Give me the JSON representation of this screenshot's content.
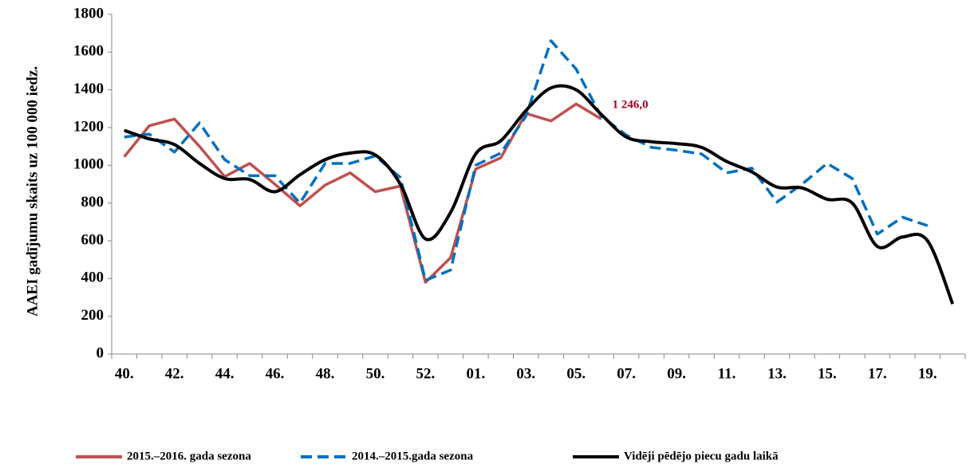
{
  "chart_data": {
    "type": "line",
    "y_label": "AAEI gadījumu skaits uz 100 000 iedz.",
    "categories": [
      "40.",
      null,
      "42.",
      null,
      "44.",
      null,
      "46.",
      null,
      "48.",
      null,
      "50.",
      null,
      "52.",
      null,
      "01.",
      null,
      "03.",
      null,
      "05.",
      null,
      "07.",
      null,
      "09.",
      null,
      "11.",
      null,
      "13.",
      null,
      "15.",
      null,
      "17.",
      null,
      "19.",
      null
    ],
    "ylim": [
      0,
      1800
    ],
    "yticks": [
      0,
      200,
      400,
      600,
      800,
      1000,
      1200,
      1400,
      1600,
      1800
    ],
    "legend": "bottom",
    "series": [
      {
        "name": "2015.–2016. gada sezona",
        "color": "#c0504d",
        "dash": false,
        "smooth": false,
        "values": [
          1045,
          1210,
          1245,
          1100,
          940,
          1010,
          900,
          785,
          895,
          960,
          860,
          890,
          380,
          510,
          980,
          1040,
          1275,
          1235,
          1325,
          1246,
          null,
          null,
          null,
          null,
          null,
          null,
          null,
          null,
          null,
          null,
          null,
          null,
          null,
          null
        ],
        "value_labels": [
          null,
          null,
          null,
          null,
          null,
          null,
          null,
          null,
          null,
          null,
          null,
          null,
          null,
          null,
          null,
          null,
          null,
          null,
          null,
          "1 246,0",
          null,
          null,
          null,
          null,
          null,
          null,
          null,
          null,
          null,
          null,
          null,
          null,
          null,
          null
        ],
        "label_color": "#a50021"
      },
      {
        "name": "2014.–2015.gada sezona",
        "color": "#0070c0",
        "dash": true,
        "smooth": false,
        "values": [
          1150,
          1165,
          1070,
          1225,
          1030,
          945,
          945,
          800,
          1010,
          1010,
          1050,
          935,
          390,
          445,
          1000,
          1065,
          1260,
          1660,
          1510,
          1260,
          1160,
          1095,
          1080,
          1060,
          960,
          985,
          805,
          900,
          1010,
          930,
          635,
          725,
          680,
          null
        ]
      },
      {
        "name": "Vidēji pēdējo piecu gadu laikā",
        "color": "#000000",
        "dash": false,
        "smooth": true,
        "values": [
          1185,
          1140,
          1110,
          1010,
          930,
          925,
          860,
          950,
          1030,
          1065,
          1055,
          900,
          610,
          750,
          1060,
          1130,
          1290,
          1410,
          1400,
          1270,
          1150,
          1125,
          1115,
          1095,
          1020,
          965,
          885,
          880,
          820,
          800,
          570,
          620,
          600,
          265
        ]
      }
    ]
  }
}
